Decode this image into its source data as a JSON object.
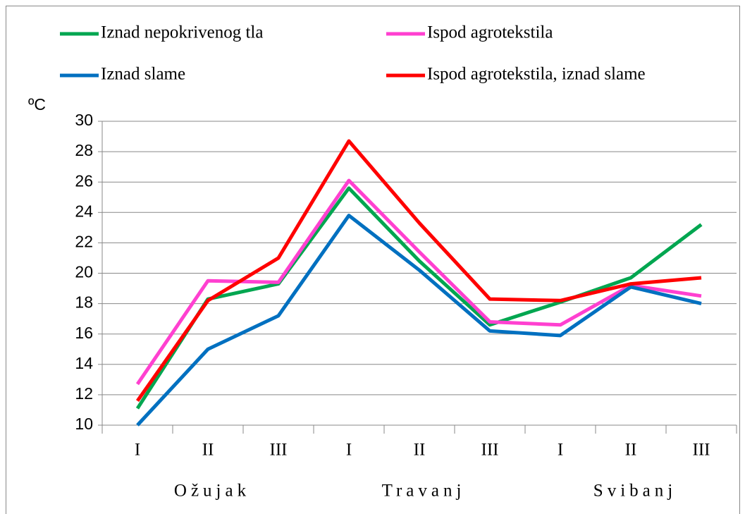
{
  "chart_data": {
    "type": "line",
    "ylabel": "ºC",
    "categories": [
      "I",
      "II",
      "III",
      "I",
      "II",
      "III",
      "I",
      "II",
      "III"
    ],
    "groups": [
      "Ožujak",
      "Travanj",
      "Svibanj"
    ],
    "series": [
      {
        "name": "Iznad nepokrivenog tla",
        "color": "#00a650",
        "values": [
          11.1,
          18.3,
          19.3,
          25.6,
          20.8,
          16.6,
          18.1,
          19.7,
          23.2
        ]
      },
      {
        "name": "Ispod agrotekstila",
        "color": "#ff40d0",
        "values": [
          12.7,
          19.5,
          19.4,
          26.1,
          21.4,
          16.8,
          16.6,
          19.2,
          18.5
        ]
      },
      {
        "name": "Iznad slame",
        "color": "#0070c0",
        "values": [
          10.0,
          15.0,
          17.2,
          23.8,
          20.2,
          16.2,
          15.9,
          19.1,
          18.0
        ]
      },
      {
        "name": "Ispod agrotekstila, iznad slame",
        "color": "#ff0000",
        "values": [
          11.6,
          18.2,
          21.0,
          28.7,
          23.3,
          18.3,
          18.2,
          19.3,
          19.7
        ]
      }
    ],
    "ylim": [
      10,
      30
    ],
    "yticks": [
      10,
      12,
      14,
      16,
      18,
      20,
      22,
      24,
      26,
      28,
      30
    ],
    "grid": true
  }
}
